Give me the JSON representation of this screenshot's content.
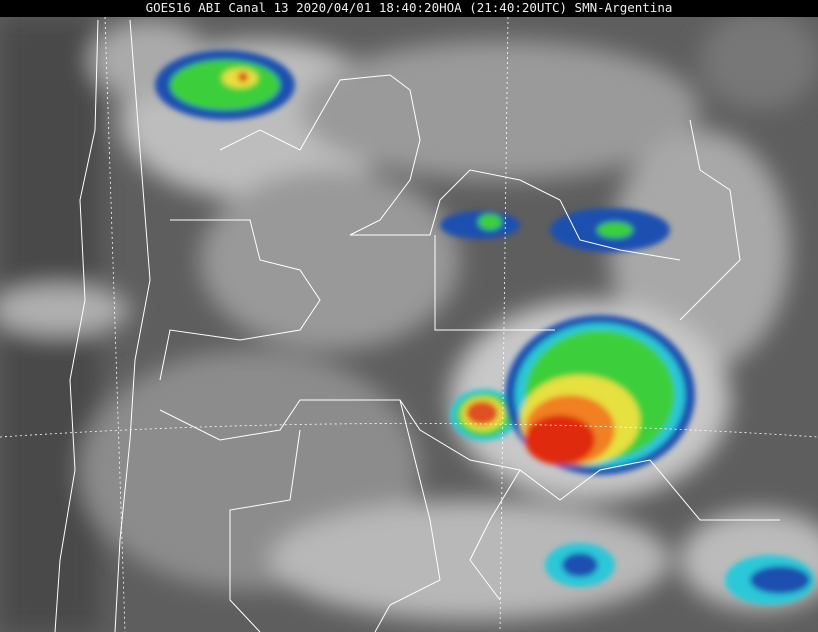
{
  "header": {
    "title": "GOES16 ABI Canal 13 2020/04/01 18:40:20HOA (21:40:20UTC) SMN-Argentina"
  },
  "imagery": {
    "type": "infrared satellite image",
    "colors": {
      "background": "#5e5e5e",
      "cloud_cold": "#e8e8e8",
      "enhance_blue": "#1a4fb0",
      "enhance_cyan": "#2cc8d8",
      "enhance_green": "#3ecf3a",
      "enhance_yellow": "#e6e040",
      "enhance_red": "#e02a10",
      "borders": "#ffffff"
    }
  }
}
